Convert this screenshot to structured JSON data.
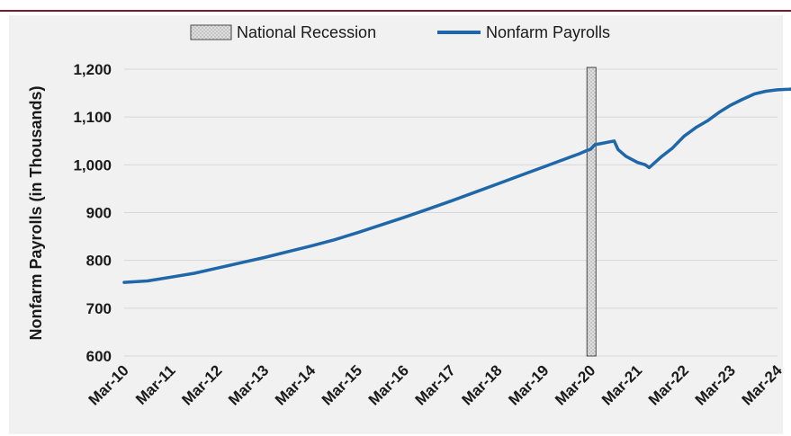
{
  "chart_data": {
    "type": "line",
    "title": "",
    "xlabel": "",
    "ylabel": "Nonfarm Payrolls (in Thousands)",
    "ylim": [
      600,
      1200
    ],
    "yticks": [
      "600",
      "700",
      "800",
      "900",
      "1,000",
      "1,100",
      "1,200"
    ],
    "x_tick_labels": [
      "Mar-10",
      "Mar-11",
      "Mar-12",
      "Mar-13",
      "Mar-14",
      "Mar-15",
      "Mar-16",
      "Mar-17",
      "Mar-18",
      "Mar-19",
      "Mar-20",
      "Mar-21",
      "Mar-22",
      "Mar-23",
      "Mar-24"
    ],
    "legend": {
      "position": "top",
      "recession_label": "National Recession",
      "series_label": "Nonfarm Payrolls"
    },
    "recession": {
      "start": "Feb-20",
      "end": "Apr-20"
    },
    "series": [
      {
        "name": "Nonfarm Payrolls",
        "color": "#1f67a8",
        "points": [
          [
            "Mar-10",
            754
          ],
          [
            "Sep-10",
            757
          ],
          [
            "Mar-11",
            765
          ],
          [
            "Sep-11",
            773
          ],
          [
            "Mar-12",
            784
          ],
          [
            "Sep-12",
            795
          ],
          [
            "Mar-13",
            806
          ],
          [
            "Sep-13",
            818
          ],
          [
            "Mar-14",
            830
          ],
          [
            "Sep-14",
            843
          ],
          [
            "Mar-15",
            858
          ],
          [
            "Sep-15",
            874
          ],
          [
            "Mar-16",
            890
          ],
          [
            "Sep-16",
            907
          ],
          [
            "Mar-17",
            924
          ],
          [
            "Sep-17",
            942
          ],
          [
            "Mar-18",
            960
          ],
          [
            "Sep-18",
            978
          ],
          [
            "Mar-19",
            996
          ],
          [
            "Sep-19",
            1014
          ],
          [
            "Dec-19",
            1023
          ],
          [
            "Feb-20",
            1030
          ],
          [
            "Mar-20",
            1033
          ],
          [
            "Apr-20",
            1042
          ],
          [
            "Jun-20",
            1045
          ],
          [
            "Sep-20",
            1050
          ],
          [
            "Oct-20",
            1032
          ],
          [
            "Dec-20",
            1018
          ],
          [
            "Mar-21",
            1005
          ],
          [
            "May-21",
            1000
          ],
          [
            "Jun-21",
            994
          ],
          [
            "Sep-21",
            1016
          ],
          [
            "Dec-21",
            1035
          ],
          [
            "Mar-22",
            1060
          ],
          [
            "Jun-22",
            1078
          ],
          [
            "Sep-22",
            1092
          ],
          [
            "Dec-22",
            1110
          ],
          [
            "Mar-23",
            1125
          ],
          [
            "Jun-23",
            1137
          ],
          [
            "Sep-23",
            1148
          ],
          [
            "Dec-23",
            1154
          ],
          [
            "Mar-24",
            1157
          ],
          [
            "Jun-24",
            1158
          ],
          [
            "Aug-24",
            1160
          ]
        ]
      }
    ],
    "grid": true,
    "colors": {
      "line": "#1f67a8",
      "recession_fill": "#b5b5b5",
      "grid": "#d6d6d6",
      "background": "#f1f1f1",
      "accent": "#7b1c2e"
    }
  }
}
